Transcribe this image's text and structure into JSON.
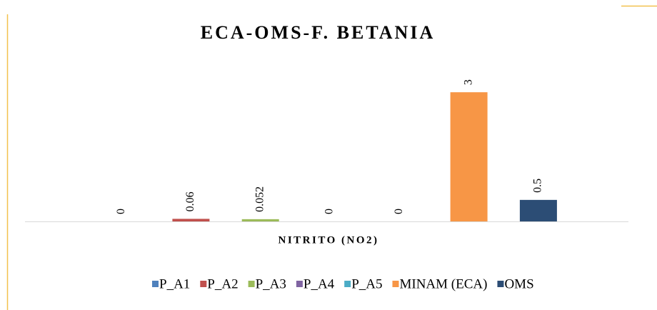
{
  "chart_data": {
    "type": "bar",
    "title": "ECA-OMS-F. BETANIA",
    "x_label": "NITRITO (NO2)",
    "series": [
      {
        "name": "P_A1",
        "color": "#4f81bd",
        "values": [
          0
        ]
      },
      {
        "name": "P_A2",
        "color": "#c0504d",
        "values": [
          0.06
        ]
      },
      {
        "name": "P_A3",
        "color": "#9bbb59",
        "values": [
          0.052
        ]
      },
      {
        "name": "P_A4",
        "color": "#8064a2",
        "values": [
          0
        ]
      },
      {
        "name": "P_A5",
        "color": "#4bacc6",
        "values": [
          0
        ]
      },
      {
        "name": "MINAM (ECA)",
        "color": "#f79646",
        "values": [
          3
        ]
      },
      {
        "name": "OMS",
        "color": "#2c4d75",
        "values": [
          0.5
        ]
      }
    ],
    "ylim": [
      0,
      3.5
    ],
    "legend": "bottom"
  }
}
